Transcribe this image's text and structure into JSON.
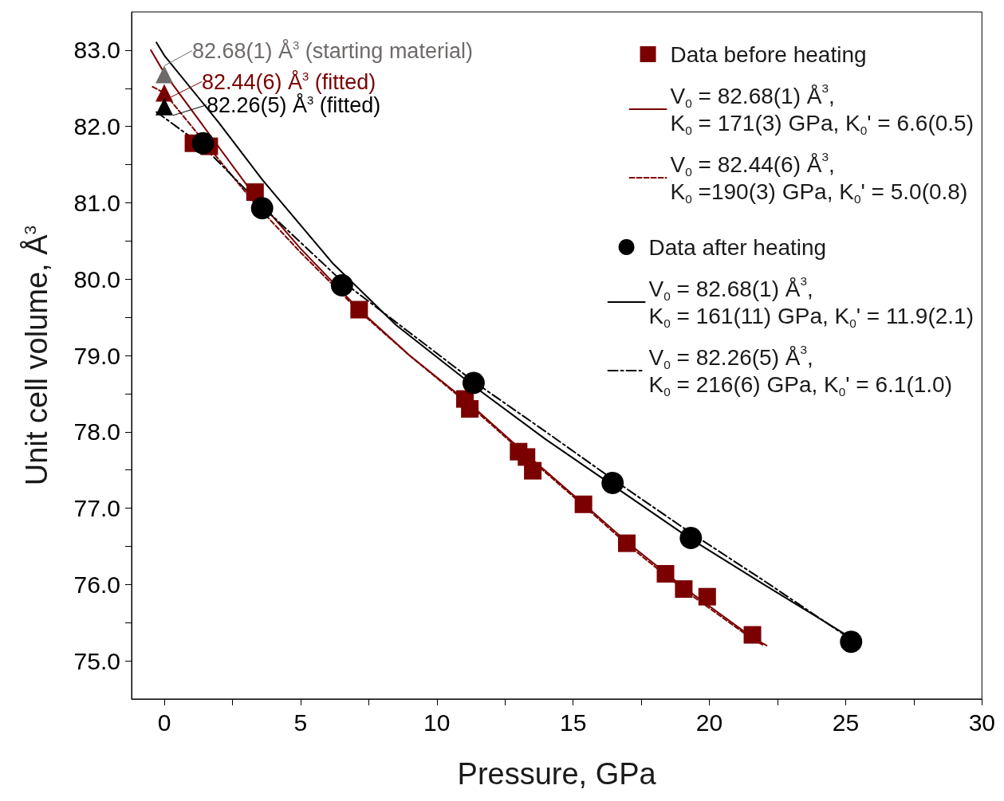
{
  "chart_data": {
    "type": "scatter",
    "xlabel": "Pressure, GPa",
    "ylabel": "Unit cell volume, Å$^{3}$",
    "xlim": [
      -1.2,
      30
    ],
    "ylim": [
      74.5,
      83.5
    ],
    "xticks": [
      0,
      {
        "value": 2.5,
        "label": null
      },
      5,
      {
        "value": 7.5,
        "label": null
      },
      10,
      {
        "value": 12.5,
        "label": null
      },
      15,
      {
        "value": 17.5,
        "label": null
      },
      20,
      {
        "value": 22.5,
        "label": null
      },
      25,
      {
        "value": 27.5,
        "label": null
      },
      30
    ],
    "yticks": [
      {
        "value": 75,
        "label": "75.0"
      },
      {
        "value": 75.5,
        "label": null
      },
      {
        "value": 76,
        "label": "76.0"
      },
      {
        "value": 76.5,
        "label": null
      },
      {
        "value": 77,
        "label": "77.0"
      },
      {
        "value": 77.5,
        "label": null
      },
      {
        "value": 78,
        "label": "78.0"
      },
      {
        "value": 78.5,
        "label": null
      },
      {
        "value": 79,
        "label": "79.0"
      },
      {
        "value": 79.5,
        "label": null
      },
      {
        "value": 80,
        "label": "80.0"
      },
      {
        "value": 80.5,
        "label": null
      },
      {
        "value": 81,
        "label": "81.0"
      },
      {
        "value": 81.5,
        "label": null
      },
      {
        "value": 82,
        "label": "82.0"
      },
      {
        "value": 82.5,
        "label": null
      },
      {
        "value": 83,
        "label": "83.0"
      }
    ],
    "grid": false,
    "legend": "top right",
    "series": [
      {
        "name": "Data before heating",
        "marker": "square",
        "color": "#7b0000",
        "x": [
          1.07,
          1.65,
          3.33,
          7.15,
          11.03,
          11.21,
          13.0,
          13.29,
          13.52,
          15.38,
          16.97,
          18.39,
          19.06,
          19.92,
          21.58
        ],
        "values": [
          81.78,
          81.74,
          81.14,
          79.6,
          78.43,
          78.3,
          77.74,
          77.67,
          77.49,
          77.05,
          76.54,
          76.14,
          75.94,
          75.84,
          75.34
        ]
      },
      {
        "name": "V$_{0}$ = 82.68(1) Å$^{3}$,\nK$_{0}$ = 171(3) GPa, K$_{0}$' = 6.6(0.5)",
        "type": "line",
        "marker": "none",
        "line_style": "solid",
        "color": "#7b0000",
        "x": [
          -0.49,
          0,
          3.3,
          5,
          7.15,
          9,
          11.1,
          13.3,
          15.4,
          17,
          19.1,
          21.6,
          22.1
        ],
        "values": [
          83.0,
          82.7,
          81.1,
          80.4,
          79.6,
          79.0,
          78.4,
          77.7,
          77.05,
          76.55,
          75.95,
          75.3,
          75.2
        ]
      },
      {
        "name": "V$_{0}$ = 82.44(6) Å$^{3}$,\nK$_{0}$ =190(3) GPa, K$_{0}$' = 5.0(0.8)",
        "type": "line",
        "marker": "none",
        "line_style": "dashed",
        "color": "#7b0000",
        "x": [
          -0.43,
          0,
          3.3,
          5,
          7.15,
          9,
          11.1,
          13.3,
          15.4,
          17,
          19.1,
          21.6,
          22.0
        ],
        "values": [
          82.52,
          82.44,
          81.0,
          80.35,
          79.58,
          79.0,
          78.38,
          77.68,
          77.03,
          76.52,
          75.92,
          75.28,
          75.2
        ]
      },
      {
        "name": "Data after heating",
        "marker": "circle",
        "color": "#000000",
        "x": [
          1.42,
          3.59,
          6.52,
          11.35,
          16.45,
          19.32,
          25.2
        ],
        "values": [
          81.78,
          80.93,
          79.92,
          78.64,
          77.33,
          76.61,
          75.25
        ]
      },
      {
        "name": "V$_{0}$ = 82.68(1) Å$^{3}$,\nK$_{0}$ = 161(11) GPa, K$_{0}$' = 11.9(2.1)",
        "type": "line",
        "marker": "none",
        "line_style": "solid",
        "color": "#000000",
        "x": [
          -0.29,
          0,
          2,
          3.6,
          6.2,
          8.5,
          11.35,
          14,
          16.45,
          19.3,
          22,
          25.2
        ],
        "values": [
          83.1,
          82.93,
          82.05,
          81.3,
          80.2,
          79.4,
          78.6,
          77.9,
          77.3,
          76.6,
          76.0,
          75.3
        ]
      },
      {
        "name": "V$_{0}$ = 82.26(5) Å$^{3}$,\nK$_{0}$ = 216(6) GPa, K$_{0}$' = 6.1(1.0)",
        "type": "line",
        "marker": "none",
        "line_style": "dashdot",
        "color": "#000000",
        "x": [
          -0.29,
          1.4,
          3.6,
          6.5,
          9,
          11.35,
          14,
          16.45,
          19.3,
          22,
          25.2
        ],
        "values": [
          82.19,
          81.75,
          80.95,
          79.98,
          79.3,
          78.66,
          78.0,
          77.38,
          76.68,
          76.05,
          75.28
        ]
      },
      {
        "name": "82.68(1) Å$^{3}$ (starting material)",
        "marker": "triangle",
        "color": "#6e6a69",
        "x": [
          0
        ],
        "values": [
          82.68
        ]
      },
      {
        "name": "82.44(6) Å$^{3}$ (fitted)",
        "marker": "triangle",
        "color": "#7b0000",
        "x": [
          0
        ],
        "values": [
          82.44
        ]
      },
      {
        "name": "82.26(5) Å$^{3}$ (fitted)",
        "marker": "triangle",
        "color": "#000000",
        "x": [
          0
        ],
        "values": [
          82.26
        ]
      }
    ]
  }
}
